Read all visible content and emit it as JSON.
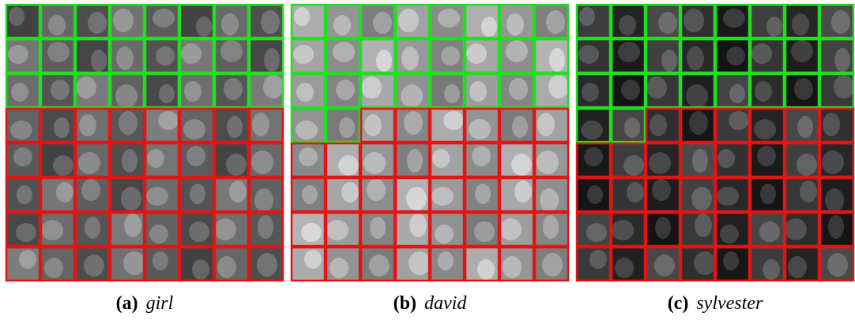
{
  "figures": [
    {
      "label": "(a)",
      "caption": "girl"
    },
    {
      "label": "(b)",
      "caption": "david"
    },
    {
      "label": "(c)",
      "caption": "sylvester"
    }
  ]
}
